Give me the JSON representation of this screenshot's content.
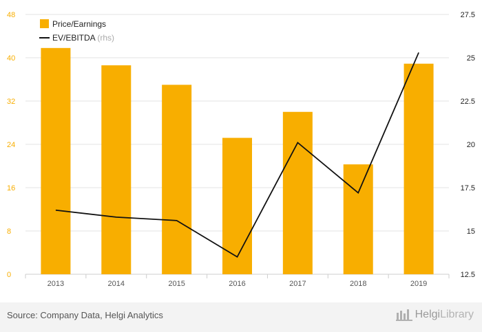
{
  "chart_data": {
    "type": "bar",
    "categories": [
      "2013",
      "2014",
      "2015",
      "2016",
      "2017",
      "2018",
      "2019"
    ],
    "series": [
      {
        "name": "Price/Earnings",
        "type": "bar",
        "axis": "left",
        "color": "#f8ae00",
        "values": [
          41.8,
          38.6,
          35.0,
          25.2,
          30.0,
          20.3,
          38.9
        ]
      },
      {
        "name": "EV/EBITDA (rhs)",
        "name_main": "EV/EBITDA",
        "name_suffix": "(rhs)",
        "type": "line",
        "axis": "right",
        "color": "#111111",
        "values": [
          16.2,
          15.8,
          15.6,
          13.5,
          20.1,
          17.2,
          25.3
        ]
      }
    ],
    "y_left": {
      "min": 0,
      "max": 48,
      "ticks": [
        "0",
        "8",
        "16",
        "24",
        "32",
        "40",
        "48"
      ],
      "tick_color": "#f8ae00"
    },
    "y_right": {
      "min": 12.5,
      "max": 27.5,
      "ticks": [
        "12.5",
        "15",
        "17.5",
        "20",
        "22.5",
        "25",
        "27.5"
      ]
    },
    "grid": true,
    "legend": "top-left"
  },
  "footer": {
    "source": "Source: Company Data, Helgi Analytics",
    "brand_main": "Helgi",
    "brand_light": "Library"
  }
}
